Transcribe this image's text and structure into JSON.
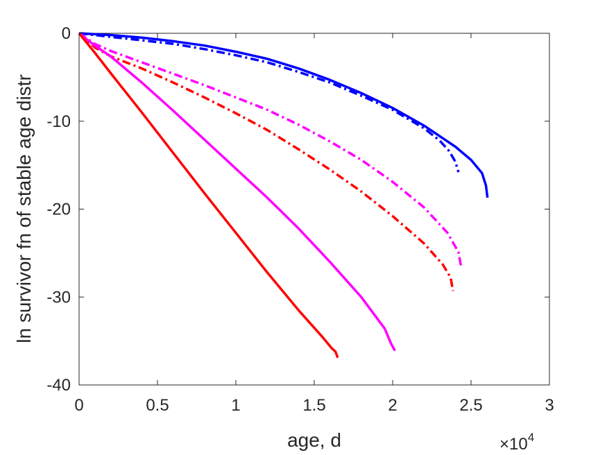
{
  "chart_data": {
    "type": "line",
    "title": "",
    "xlabel": "age, d",
    "ylabel": "ln survivor fn of stable age distr",
    "x_exponent_label": "×10",
    "x_exponent_power": "4",
    "xlim": [
      0,
      30000
    ],
    "ylim": [
      -40,
      0
    ],
    "xticks": [
      0,
      5000,
      10000,
      15000,
      20000,
      25000,
      30000
    ],
    "xtick_labels": [
      "0",
      "0.5",
      "1",
      "1.5",
      "2",
      "2.5",
      "3"
    ],
    "yticks": [
      0,
      -10,
      -20,
      -30,
      -40
    ],
    "ytick_labels": [
      "0",
      "-10",
      "-20",
      "-30",
      "-40"
    ],
    "grid": false,
    "legend": "none",
    "series": [
      {
        "color": "#0000ff",
        "style": "solid",
        "x": [
          0,
          2000,
          4000,
          6000,
          8000,
          10000,
          12000,
          14000,
          16000,
          18000,
          20000,
          22000,
          24000,
          25000,
          25700,
          25950,
          26050
        ],
        "y": [
          0,
          -0.2,
          -0.5,
          -0.9,
          -1.4,
          -2.1,
          -2.9,
          -4.0,
          -5.3,
          -6.8,
          -8.5,
          -10.5,
          -12.9,
          -14.4,
          -15.9,
          -17.3,
          -18.7
        ]
      },
      {
        "color": "#0000ff",
        "style": "dashdot",
        "x": [
          0,
          2000,
          4000,
          6000,
          8000,
          10000,
          12000,
          14000,
          16000,
          18000,
          20000,
          22000,
          23000,
          23600,
          24000,
          24200
        ],
        "y": [
          0,
          -0.4,
          -0.8,
          -1.2,
          -1.8,
          -2.5,
          -3.3,
          -4.4,
          -5.6,
          -7.1,
          -8.7,
          -10.8,
          -12.2,
          -13.4,
          -14.6,
          -15.8
        ]
      },
      {
        "color": "#ff00ff",
        "style": "dashdot",
        "x": [
          0,
          1000,
          2000,
          4000,
          6000,
          8000,
          10000,
          12000,
          14000,
          16000,
          18000,
          20000,
          22000,
          23500,
          24200,
          24350
        ],
        "y": [
          0,
          -1.2,
          -2.0,
          -3.3,
          -4.6,
          -5.9,
          -7.3,
          -8.7,
          -10.4,
          -12.3,
          -14.4,
          -16.9,
          -19.8,
          -22.7,
          -24.9,
          -26.4
        ]
      },
      {
        "color": "#ff0000",
        "style": "dashdot",
        "x": [
          0,
          1000,
          2000,
          4000,
          6000,
          8000,
          10000,
          12000,
          14000,
          16000,
          18000,
          20000,
          22000,
          23200,
          23700,
          23850
        ],
        "y": [
          0,
          -1.6,
          -2.6,
          -4.0,
          -5.6,
          -7.3,
          -9.1,
          -11.0,
          -13.2,
          -15.5,
          -18.0,
          -20.8,
          -23.9,
          -26.3,
          -27.8,
          -29.3
        ]
      },
      {
        "color": "#ff00ff",
        "style": "solid",
        "x": [
          0,
          1000,
          2000,
          4000,
          6000,
          8000,
          10000,
          12000,
          14000,
          16000,
          18000,
          19500,
          19900,
          20150
        ],
        "y": [
          0,
          -1.4,
          -2.6,
          -5.6,
          -8.8,
          -12.1,
          -15.4,
          -18.7,
          -22.2,
          -26.0,
          -30.0,
          -33.6,
          -35.3,
          -36.1
        ]
      },
      {
        "color": "#ff0000",
        "style": "solid",
        "x": [
          0,
          1000,
          2000,
          4000,
          6000,
          8000,
          10000,
          12000,
          14000,
          15500,
          16100,
          16350,
          16500
        ],
        "y": [
          0,
          -2.2,
          -4.5,
          -9.0,
          -13.6,
          -18.2,
          -22.7,
          -27.2,
          -31.5,
          -34.5,
          -35.8,
          -36.2,
          -36.9
        ]
      }
    ]
  }
}
